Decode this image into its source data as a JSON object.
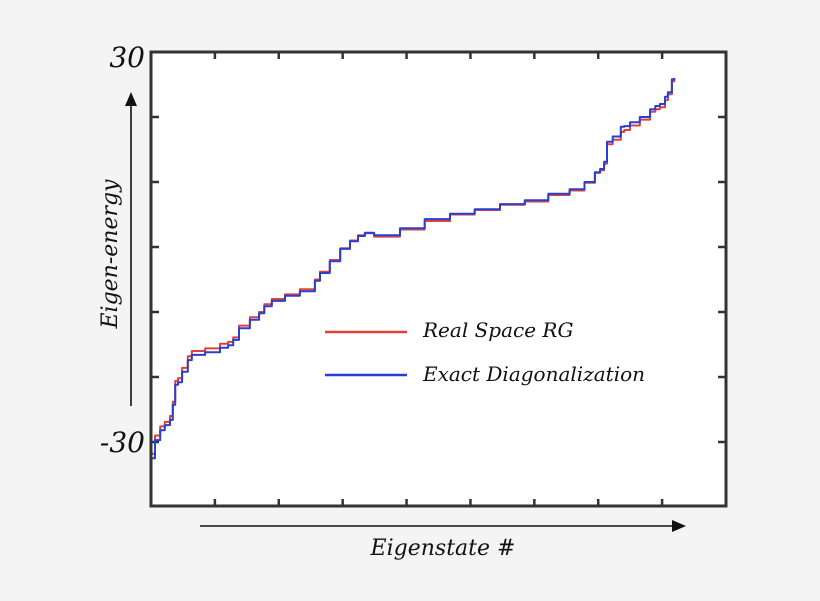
{
  "chart_data": {
    "type": "line",
    "title": "",
    "xlabel": "Eigenstate #",
    "ylabel": "Eigen-energy",
    "ylim": [
      -40,
      30
    ],
    "y_tick_labels": [
      "30",
      "-30"
    ],
    "y_ticks": [
      30,
      20,
      10,
      0,
      -10,
      -20,
      -30
    ],
    "xlim": [
      0,
      100
    ],
    "x_tick_count": 8,
    "x_tick_labels": [],
    "grid": false,
    "legend_position": "center-right, inside plot",
    "legend": [
      "Real Space RG",
      "Exact Diagonalization"
    ],
    "colors": {
      "Real Space RG": "#e0403a",
      "Exact Diagonalization": "#2a3fd0"
    },
    "series": [
      {
        "name": "Exact Diagonalization",
        "x": [
          0,
          0.7,
          1.6,
          2.4,
          3.3,
          3.8,
          4.2,
          4.7,
          5.4,
          6.4,
          7.1,
          9.4,
          12.0,
          13.4,
          14.3,
          15.3,
          17.2,
          18.8,
          19.7,
          21.0,
          23.3,
          25.9,
          28.5,
          29.4,
          31.1,
          32.9,
          34.6,
          36.0,
          37.2,
          38.8,
          43.3,
          47.6,
          52.0,
          56.3,
          60.7,
          65.0,
          69.1,
          72.8,
          75.4,
          77.2,
          78.1,
          78.8,
          79.3,
          80.3,
          81.7,
          82.3,
          83.3,
          85.0,
          86.8,
          87.7,
          88.5,
          89.4,
          89.9,
          90.6,
          91.0
        ],
        "y": [
          -32.5,
          -29.7,
          -28.2,
          -27.4,
          -26.6,
          -24.3,
          -21.2,
          -20.8,
          -19.2,
          -17.4,
          -16.6,
          -16.2,
          -15.5,
          -15.1,
          -14.3,
          -12.5,
          -11.2,
          -10.2,
          -9.1,
          -8.3,
          -7.5,
          -6.8,
          -5.2,
          -4.0,
          -2.2,
          -0.3,
          0.9,
          1.7,
          2.2,
          1.8,
          2.9,
          4.3,
          5.1,
          5.8,
          6.6,
          7.2,
          8.2,
          8.9,
          10.0,
          11.5,
          12.0,
          13.1,
          16.2,
          17.0,
          18.5,
          18.6,
          19.2,
          20.0,
          21.2,
          21.7,
          22.0,
          23.1,
          23.8,
          25.8,
          26.0
        ],
        "units_note": "x as % of axis width (no numeric x labels shown)"
      },
      {
        "name": "Real Space RG",
        "x": [
          0,
          0.7,
          1.6,
          2.4,
          3.3,
          3.8,
          4.2,
          4.7,
          5.4,
          6.4,
          7.1,
          9.4,
          12.0,
          13.4,
          14.3,
          15.3,
          17.2,
          18.8,
          19.7,
          21.0,
          23.3,
          25.9,
          28.5,
          29.4,
          31.1,
          32.9,
          34.6,
          36.0,
          37.2,
          38.8,
          43.3,
          47.6,
          52.0,
          56.3,
          60.7,
          65.0,
          69.1,
          72.8,
          75.4,
          77.2,
          78.1,
          78.8,
          79.3,
          80.3,
          81.7,
          82.3,
          83.3,
          85.0,
          86.8,
          87.7,
          88.5,
          89.4,
          89.9,
          90.6,
          91.0
        ],
        "y": [
          -31.8,
          -29.0,
          -27.6,
          -26.9,
          -26.0,
          -23.8,
          -20.6,
          -20.2,
          -18.6,
          -16.8,
          -16.0,
          -15.6,
          -14.9,
          -14.6,
          -13.9,
          -12.1,
          -10.8,
          -10.0,
          -8.8,
          -8.0,
          -7.3,
          -6.5,
          -5.0,
          -3.8,
          -2.0,
          -0.2,
          1.0,
          1.8,
          2.1,
          1.6,
          2.7,
          4.0,
          5.0,
          5.7,
          6.5,
          7.0,
          8.0,
          8.7,
          9.9,
          11.4,
          11.8,
          12.8,
          15.8,
          16.5,
          17.7,
          18.0,
          18.7,
          19.6,
          20.8,
          21.2,
          21.5,
          22.6,
          23.5,
          25.5,
          25.9
        ]
      }
    ]
  },
  "axes": {
    "y_top_label": "30",
    "y_bottom_label": "-30",
    "y_axis_title": "Eigen-energy",
    "x_axis_title": "Eigenstate #"
  },
  "legend": {
    "items": [
      {
        "label": "Real Space RG",
        "color": "#e0403a"
      },
      {
        "label": "Exact Diagonalization",
        "color": "#2a3fd0"
      }
    ]
  }
}
